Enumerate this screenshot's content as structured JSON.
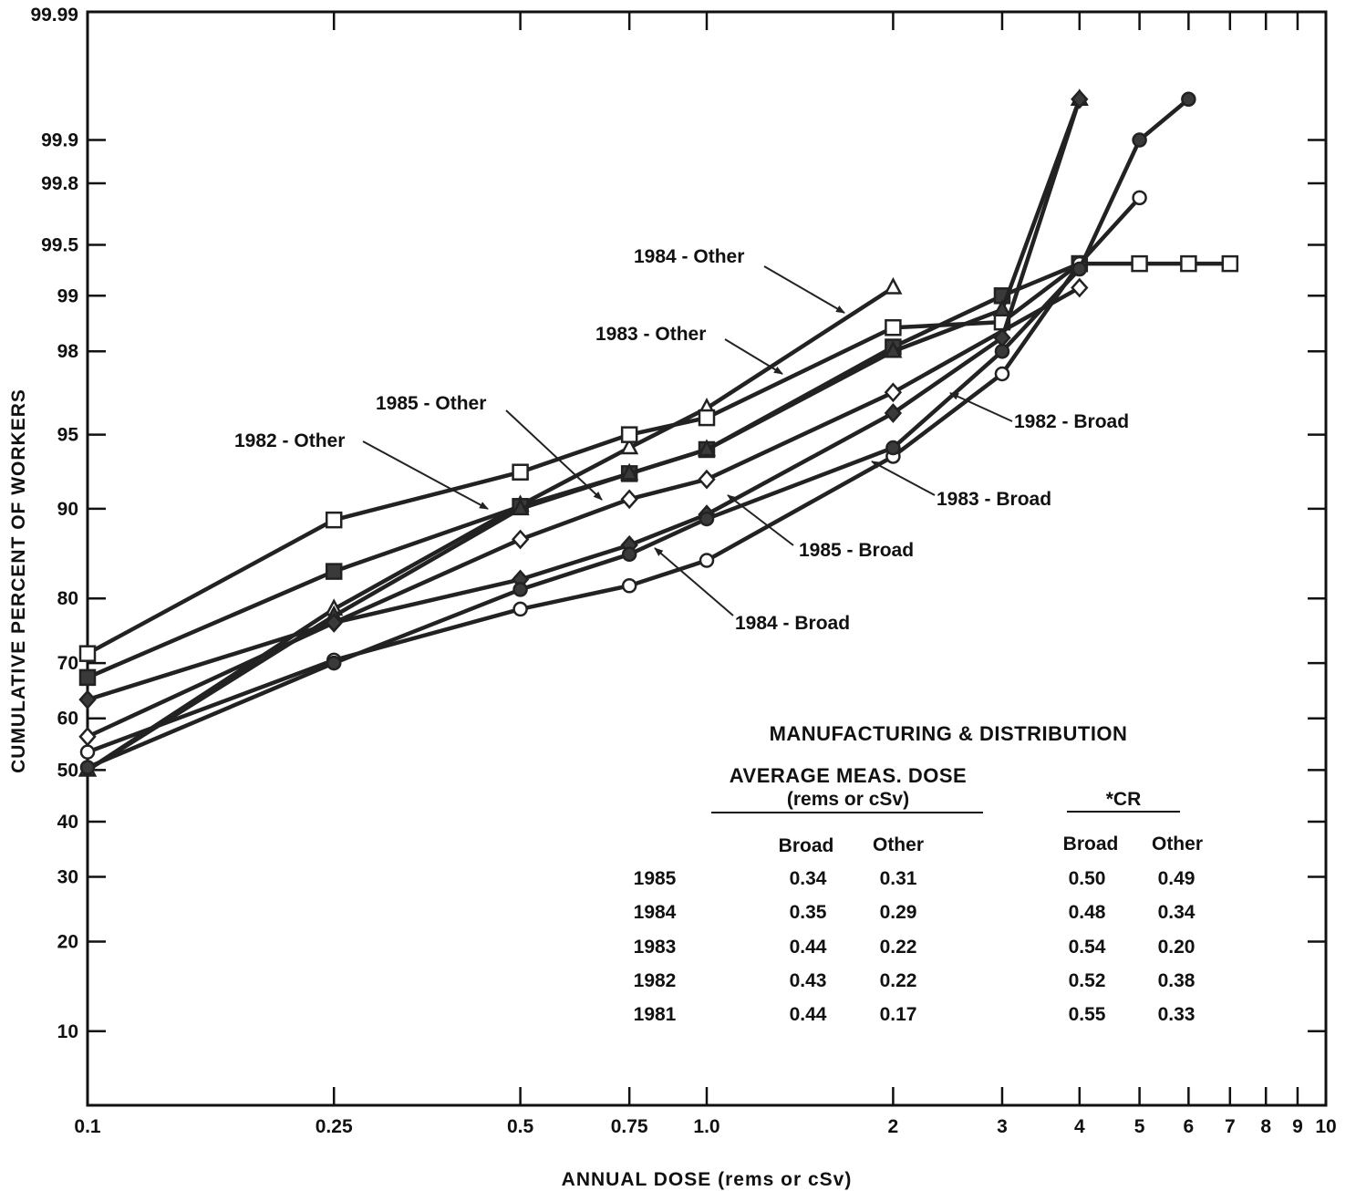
{
  "chart_data": {
    "type": "line",
    "xlabel": "ANNUAL DOSE (rems or cSv)",
    "ylabel": "CUMULATIVE PERCENT OF WORKERS",
    "x_scale": "log",
    "y_scale": "probability",
    "xlim": [
      0.1,
      10
    ],
    "ylim": [
      5,
      99.99
    ],
    "x_ticks": [
      {
        "v": 0.1,
        "label": "0.1"
      },
      {
        "v": 0.25,
        "label": "0.25"
      },
      {
        "v": 0.5,
        "label": "0.5"
      },
      {
        "v": 0.75,
        "label": "0.75"
      },
      {
        "v": 1.0,
        "label": "1.0"
      },
      {
        "v": 2,
        "label": "2"
      },
      {
        "v": 3,
        "label": "3"
      },
      {
        "v": 4,
        "label": "4"
      },
      {
        "v": 5,
        "label": "5"
      },
      {
        "v": 6,
        "label": "6"
      },
      {
        "v": 7,
        "label": "7"
      },
      {
        "v": 8,
        "label": "8"
      },
      {
        "v": 9,
        "label": "9"
      },
      {
        "v": 10,
        "label": "10"
      }
    ],
    "y_ticks": [
      {
        "v": 10,
        "label": "10"
      },
      {
        "v": 20,
        "label": "20"
      },
      {
        "v": 30,
        "label": "30"
      },
      {
        "v": 40,
        "label": "40"
      },
      {
        "v": 50,
        "label": "50"
      },
      {
        "v": 60,
        "label": "60"
      },
      {
        "v": 70,
        "label": "70"
      },
      {
        "v": 80,
        "label": "80"
      },
      {
        "v": 90,
        "label": "90"
      },
      {
        "v": 95,
        "label": "95"
      },
      {
        "v": 98,
        "label": "98"
      },
      {
        "v": 99,
        "label": "99"
      },
      {
        "v": 99.5,
        "label": "99.5"
      },
      {
        "v": 99.8,
        "label": "99.8"
      },
      {
        "v": 99.9,
        "label": "99.9"
      },
      {
        "v": 99.99,
        "label": "99.99"
      }
    ],
    "series": [
      {
        "name": "1984 - Other",
        "marker": "triangle-open",
        "x": [
          0.1,
          0.25,
          0.5,
          0.75,
          1.0,
          2
        ],
        "y": [
          50,
          78.5,
          90.3,
          94.3,
          96.2,
          99.1
        ]
      },
      {
        "name": "1983 - Other",
        "marker": "square-open",
        "x": [
          0.1,
          0.25,
          0.5,
          0.75,
          1.0,
          2,
          3,
          4,
          5,
          6,
          7
        ],
        "y": [
          71.6,
          89,
          92.8,
          95,
          95.8,
          98.5,
          98.6,
          99.35,
          99.35,
          99.35,
          99.35
        ]
      },
      {
        "name": "1985 - Other",
        "marker": "diamond-open",
        "x": [
          0.1,
          0.25,
          0.5,
          0.75,
          1.0,
          2,
          4
        ],
        "y": [
          56.5,
          76.5,
          87.1,
          90.8,
          92.3,
          96.8,
          99.1
        ]
      },
      {
        "name": "1982 - Other",
        "marker": "square-filled",
        "x": [
          0.1,
          0.25,
          0.5,
          0.75,
          1.0,
          2,
          3,
          4
        ],
        "y": [
          67.5,
          83.5,
          90.2,
          92.7,
          94.2,
          98.1,
          99.0,
          99.35
        ]
      },
      {
        "name": "1982 - Broad",
        "marker": "triangle-filled",
        "x": [
          0.1,
          0.25,
          0.5,
          0.75,
          1.0,
          2,
          3,
          4
        ],
        "y": [
          50,
          77.5,
          90,
          92.7,
          94.2,
          98.0,
          98.8,
          99.95
        ]
      },
      {
        "name": "1983 - Broad",
        "marker": "circle-open",
        "x": [
          0.1,
          0.25,
          0.5,
          0.75,
          1.0,
          2,
          3,
          4,
          5
        ],
        "y": [
          53.5,
          70.5,
          78.5,
          81.7,
          84.8,
          93.8,
          97.4,
          99.35,
          99.75
        ]
      },
      {
        "name": "1985 - Broad",
        "marker": "diamond-filled",
        "x": [
          0.1,
          0.25,
          0.5,
          0.75,
          1.0,
          2,
          3,
          4
        ],
        "y": [
          63.5,
          76.5,
          82.5,
          86.5,
          89.5,
          96.0,
          98.3,
          99.95
        ]
      },
      {
        "name": "1984 - Broad",
        "marker": "circle-filled",
        "x": [
          0.1,
          0.25,
          0.5,
          0.75,
          1.0,
          2,
          3,
          4,
          5,
          6
        ],
        "y": [
          50.5,
          70,
          81.2,
          85.5,
          89.1,
          94.3,
          98.0,
          99.3,
          99.9,
          99.95
        ]
      }
    ]
  },
  "annotations": {
    "l_1984_other": "1984 - Other",
    "l_1983_other": "1983 - Other",
    "l_1985_other": "1985 - Other",
    "l_1982_other": "1982 - Other",
    "l_1982_broad": "1982 - Broad",
    "l_1983_broad": "1983 - Broad",
    "l_1985_broad": "1985 - Broad",
    "l_1984_broad": "1984 - Broad"
  },
  "dose_table": {
    "title": "MANUFACTURING & DISTRIBUTION",
    "group1_title": "AVERAGE MEAS. DOSE",
    "group1_subtitle": "(rems or cSv)",
    "group2_title": "*CR",
    "col_broad": "Broad",
    "col_other": "Other",
    "rows": [
      {
        "year": "1985",
        "avg_broad": "0.34",
        "avg_other": "0.31",
        "cr_broad": "0.50",
        "cr_other": "0.49"
      },
      {
        "year": "1984",
        "avg_broad": "0.35",
        "avg_other": "0.29",
        "cr_broad": "0.48",
        "cr_other": "0.34"
      },
      {
        "year": "1983",
        "avg_broad": "0.44",
        "avg_other": "0.22",
        "cr_broad": "0.54",
        "cr_other": "0.20"
      },
      {
        "year": "1982",
        "avg_broad": "0.43",
        "avg_other": "0.22",
        "cr_broad": "0.52",
        "cr_other": "0.38"
      },
      {
        "year": "1981",
        "avg_broad": "0.44",
        "avg_other": "0.17",
        "cr_broad": "0.55",
        "cr_other": "0.33"
      }
    ]
  }
}
